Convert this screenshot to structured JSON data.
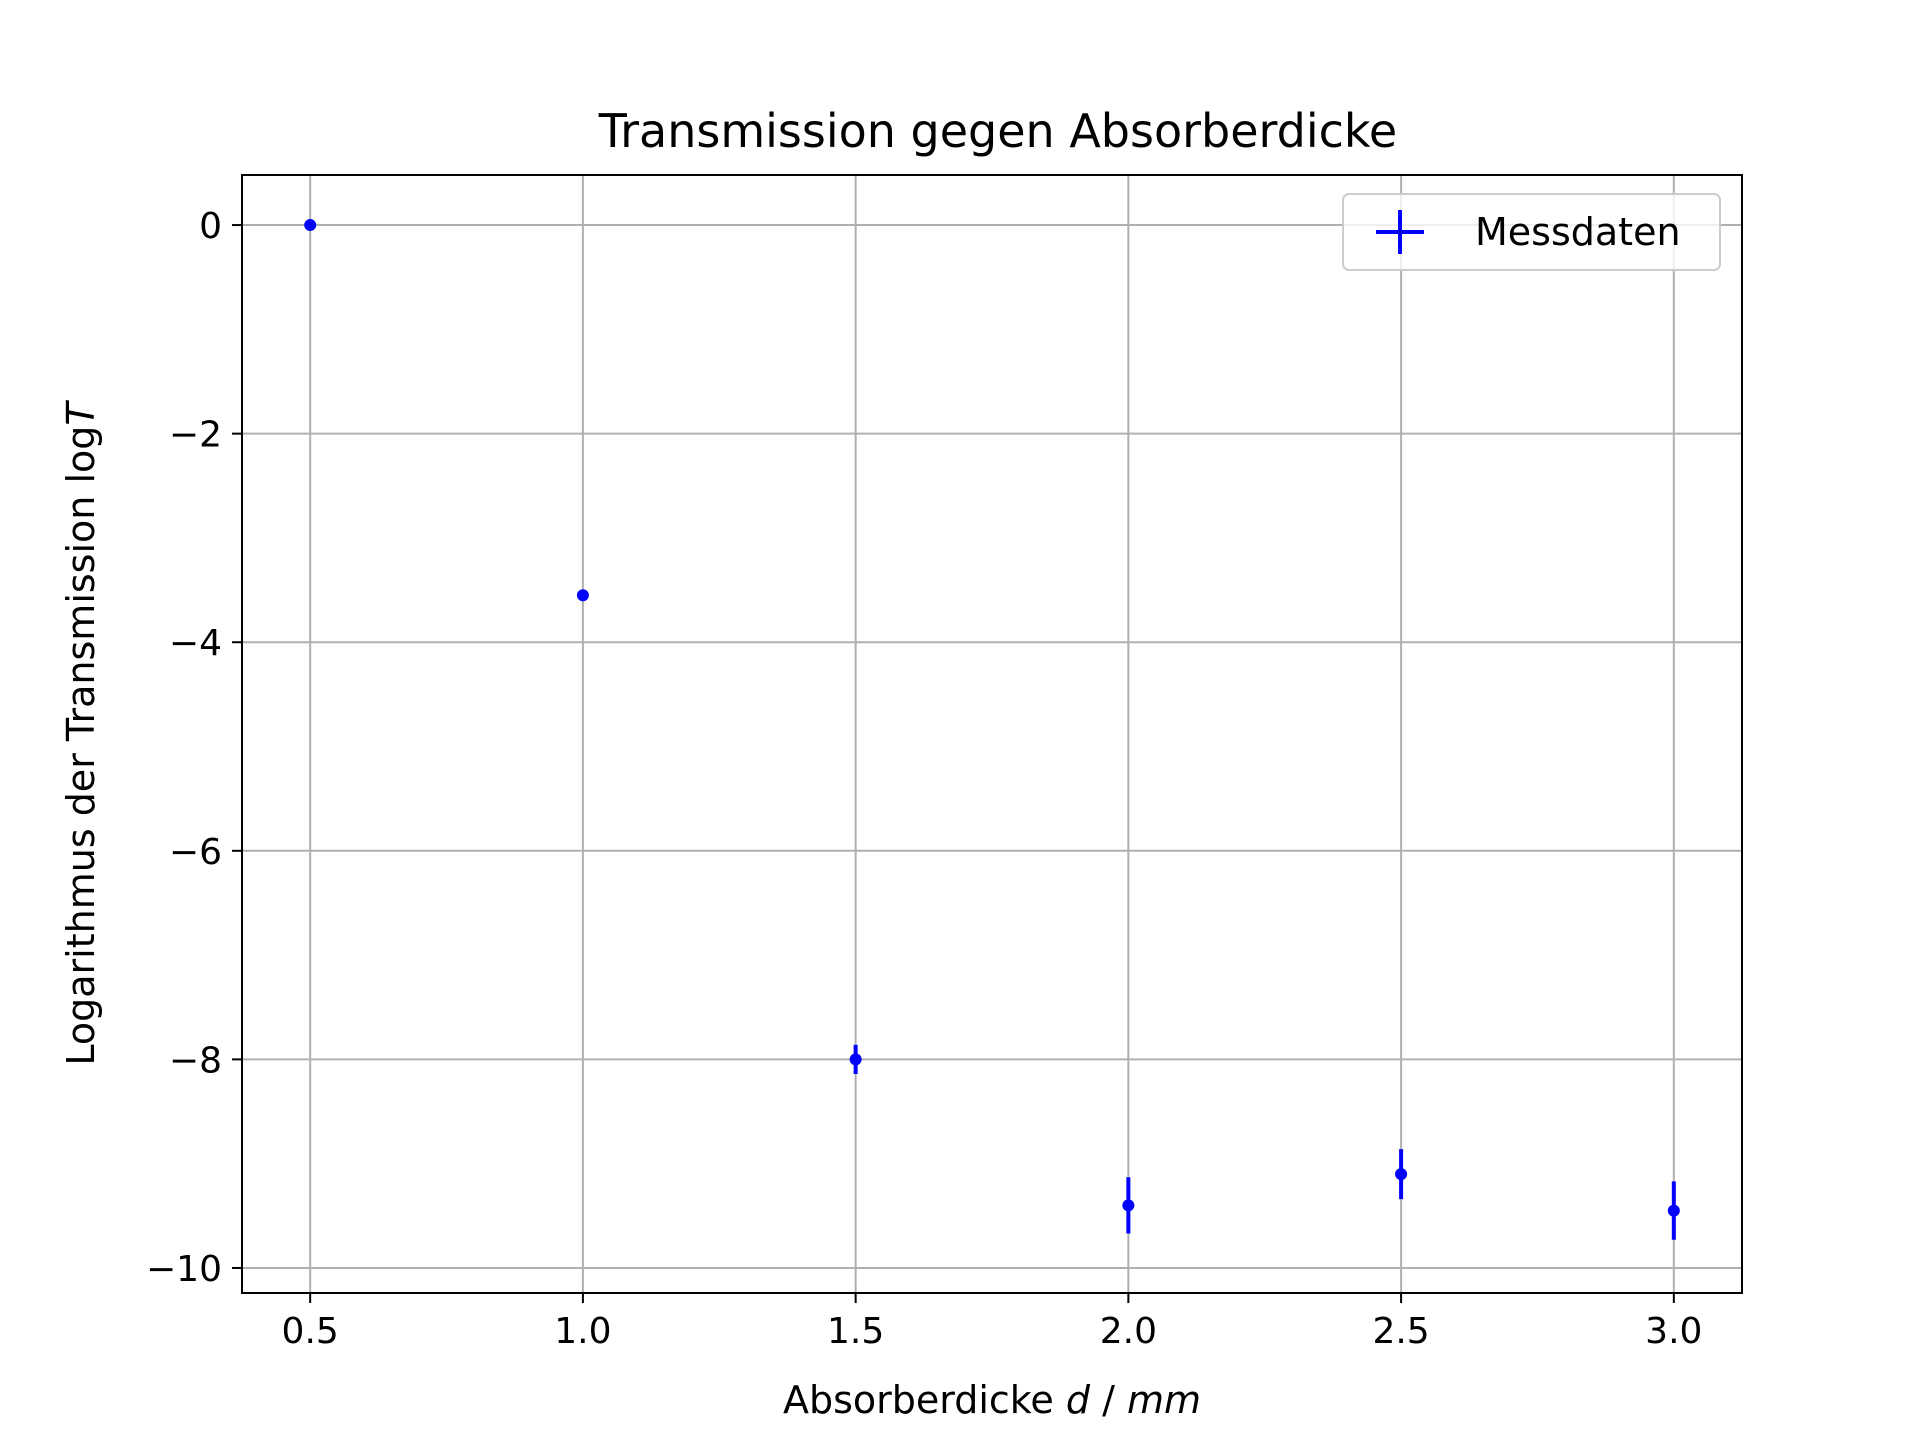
{
  "chart_data": {
    "type": "scatter",
    "title": "Transmission gegen Absorberdicke",
    "xlabel": {
      "prefix": "Absorberdicke ",
      "var": "d",
      "sep": " / ",
      "unit": "mm"
    },
    "ylabel": {
      "prefix": "Logarithmus der Transmission log",
      "var": "T"
    },
    "xlim": [
      0.375,
      3.125
    ],
    "ylim": [
      -10.24,
      0.48
    ],
    "xticks": [
      0.5,
      1.0,
      1.5,
      2.0,
      2.5,
      3.0
    ],
    "xtick_labels": [
      "0.5",
      "1.0",
      "1.5",
      "2.0",
      "2.5",
      "3.0"
    ],
    "yticks": [
      0,
      -2,
      -4,
      -6,
      -8,
      -10
    ],
    "ytick_labels": [
      "0",
      "−2",
      "−4",
      "−6",
      "−8",
      "−10"
    ],
    "grid": true,
    "legend": {
      "position": "top-right",
      "entries": [
        "Messdaten"
      ]
    },
    "color": "#0000ff",
    "series": [
      {
        "name": "Messdaten",
        "x": [
          0.5,
          1.0,
          1.5,
          2.0,
          2.5,
          3.0
        ],
        "y": [
          0.0,
          -3.55,
          -8.0,
          -9.4,
          -9.1,
          -9.45
        ],
        "yerr": [
          0.0,
          0.03,
          0.14,
          0.27,
          0.24,
          0.28
        ]
      }
    ]
  }
}
